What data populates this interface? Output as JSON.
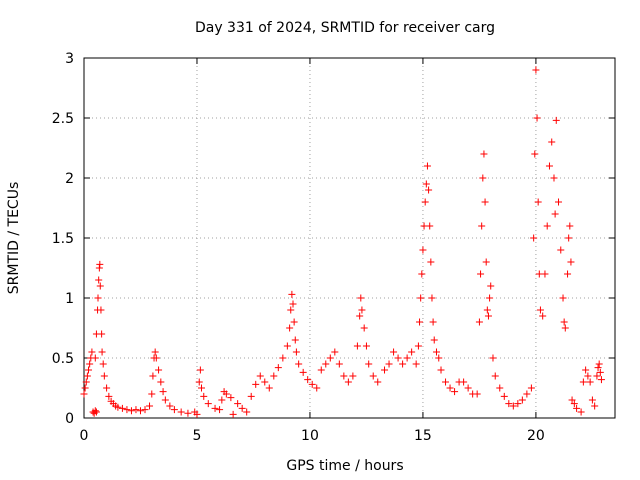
{
  "chart_data": {
    "type": "scatter",
    "title": "Day 331 of 2024, SRMTID for receiver carg",
    "xlabel": "GPS time / hours",
    "ylabel": "SRMTID / TECUs",
    "xlim": [
      0,
      23.5
    ],
    "ylim": [
      0,
      3
    ],
    "xticks": [
      0,
      5,
      10,
      15,
      20
    ],
    "xtick_labels": [
      "0",
      "5",
      "10",
      "15",
      "20"
    ],
    "yticks": [
      0,
      0.5,
      1,
      1.5,
      2,
      2.5,
      3
    ],
    "ytick_labels": [
      "0",
      "0.5",
      "1",
      "1.5",
      "2",
      "2.5",
      "3"
    ],
    "grid": true,
    "marker": "+",
    "series": [
      {
        "name": "SRMTID",
        "color": "#ff0000",
        "points": [
          [
            0.0,
            0.2
          ],
          [
            0.05,
            0.25
          ],
          [
            0.1,
            0.3
          ],
          [
            0.15,
            0.35
          ],
          [
            0.2,
            0.4
          ],
          [
            0.25,
            0.45
          ],
          [
            0.3,
            0.5
          ],
          [
            0.35,
            0.55
          ],
          [
            0.4,
            0.05
          ],
          [
            0.45,
            0.04
          ],
          [
            0.5,
            0.06
          ],
          [
            0.55,
            0.05
          ],
          [
            0.5,
            0.5
          ],
          [
            0.55,
            0.7
          ],
          [
            0.6,
            0.9
          ],
          [
            0.62,
            1.0
          ],
          [
            0.65,
            1.15
          ],
          [
            0.68,
            1.25
          ],
          [
            0.7,
            1.28
          ],
          [
            0.72,
            1.1
          ],
          [
            0.75,
            0.9
          ],
          [
            0.78,
            0.7
          ],
          [
            0.8,
            0.55
          ],
          [
            0.85,
            0.45
          ],
          [
            0.9,
            0.35
          ],
          [
            1.0,
            0.25
          ],
          [
            1.1,
            0.18
          ],
          [
            1.2,
            0.14
          ],
          [
            1.3,
            0.12
          ],
          [
            1.4,
            0.1
          ],
          [
            1.5,
            0.09
          ],
          [
            1.7,
            0.08
          ],
          [
            1.9,
            0.07
          ],
          [
            2.1,
            0.06
          ],
          [
            2.3,
            0.07
          ],
          [
            2.5,
            0.06
          ],
          [
            2.7,
            0.07
          ],
          [
            2.9,
            0.1
          ],
          [
            3.0,
            0.2
          ],
          [
            3.05,
            0.35
          ],
          [
            3.1,
            0.5
          ],
          [
            3.15,
            0.55
          ],
          [
            3.2,
            0.5
          ],
          [
            3.3,
            0.4
          ],
          [
            3.4,
            0.3
          ],
          [
            3.5,
            0.22
          ],
          [
            3.6,
            0.15
          ],
          [
            3.8,
            0.1
          ],
          [
            4.0,
            0.07
          ],
          [
            4.3,
            0.05
          ],
          [
            4.6,
            0.04
          ],
          [
            4.9,
            0.05
          ],
          [
            5.0,
            0.03
          ],
          [
            5.1,
            0.3
          ],
          [
            5.15,
            0.4
          ],
          [
            5.2,
            0.25
          ],
          [
            5.3,
            0.18
          ],
          [
            5.5,
            0.12
          ],
          [
            5.8,
            0.08
          ],
          [
            6.0,
            0.07
          ],
          [
            6.1,
            0.15
          ],
          [
            6.2,
            0.22
          ],
          [
            6.3,
            0.2
          ],
          [
            6.5,
            0.17
          ],
          [
            6.6,
            0.03
          ],
          [
            6.8,
            0.12
          ],
          [
            7.0,
            0.08
          ],
          [
            7.2,
            0.05
          ],
          [
            7.4,
            0.18
          ],
          [
            7.6,
            0.28
          ],
          [
            7.8,
            0.35
          ],
          [
            8.0,
            0.3
          ],
          [
            8.2,
            0.25
          ],
          [
            8.4,
            0.35
          ],
          [
            8.6,
            0.42
          ],
          [
            8.8,
            0.5
          ],
          [
            9.0,
            0.6
          ],
          [
            9.1,
            0.75
          ],
          [
            9.15,
            0.9
          ],
          [
            9.2,
            1.03
          ],
          [
            9.25,
            0.95
          ],
          [
            9.3,
            0.8
          ],
          [
            9.35,
            0.65
          ],
          [
            9.4,
            0.55
          ],
          [
            9.5,
            0.45
          ],
          [
            9.7,
            0.38
          ],
          [
            9.9,
            0.32
          ],
          [
            10.1,
            0.28
          ],
          [
            10.3,
            0.25
          ],
          [
            10.5,
            0.4
          ],
          [
            10.7,
            0.45
          ],
          [
            10.9,
            0.5
          ],
          [
            11.1,
            0.55
          ],
          [
            11.3,
            0.45
          ],
          [
            11.5,
            0.35
          ],
          [
            11.7,
            0.3
          ],
          [
            11.9,
            0.35
          ],
          [
            12.1,
            0.6
          ],
          [
            12.2,
            0.85
          ],
          [
            12.25,
            1.0
          ],
          [
            12.3,
            0.9
          ],
          [
            12.4,
            0.75
          ],
          [
            12.5,
            0.6
          ],
          [
            12.6,
            0.45
          ],
          [
            12.8,
            0.35
          ],
          [
            13.0,
            0.3
          ],
          [
            13.3,
            0.4
          ],
          [
            13.5,
            0.45
          ],
          [
            13.7,
            0.55
          ],
          [
            13.9,
            0.5
          ],
          [
            14.1,
            0.45
          ],
          [
            14.3,
            0.5
          ],
          [
            14.5,
            0.55
          ],
          [
            14.7,
            0.45
          ],
          [
            14.8,
            0.6
          ],
          [
            14.85,
            0.8
          ],
          [
            14.9,
            1.0
          ],
          [
            14.95,
            1.2
          ],
          [
            15.0,
            1.4
          ],
          [
            15.05,
            1.6
          ],
          [
            15.1,
            1.8
          ],
          [
            15.15,
            1.95
          ],
          [
            15.2,
            2.1
          ],
          [
            15.25,
            1.9
          ],
          [
            15.3,
            1.6
          ],
          [
            15.35,
            1.3
          ],
          [
            15.4,
            1.0
          ],
          [
            15.45,
            0.8
          ],
          [
            15.5,
            0.65
          ],
          [
            15.6,
            0.55
          ],
          [
            15.7,
            0.5
          ],
          [
            15.8,
            0.4
          ],
          [
            16.0,
            0.3
          ],
          [
            16.2,
            0.25
          ],
          [
            16.4,
            0.22
          ],
          [
            16.6,
            0.3
          ],
          [
            16.8,
            0.3
          ],
          [
            17.0,
            0.25
          ],
          [
            17.2,
            0.2
          ],
          [
            17.4,
            0.2
          ],
          [
            17.5,
            0.8
          ],
          [
            17.55,
            1.2
          ],
          [
            17.6,
            1.6
          ],
          [
            17.65,
            2.0
          ],
          [
            17.7,
            2.2
          ],
          [
            17.75,
            1.8
          ],
          [
            17.8,
            1.3
          ],
          [
            17.85,
            0.9
          ],
          [
            17.9,
            0.85
          ],
          [
            17.95,
            1.0
          ],
          [
            18.0,
            1.1
          ],
          [
            18.1,
            0.5
          ],
          [
            18.2,
            0.35
          ],
          [
            18.4,
            0.25
          ],
          [
            18.6,
            0.18
          ],
          [
            18.8,
            0.12
          ],
          [
            19.0,
            0.1
          ],
          [
            19.2,
            0.12
          ],
          [
            19.4,
            0.15
          ],
          [
            19.6,
            0.2
          ],
          [
            19.8,
            0.25
          ],
          [
            19.9,
            1.5
          ],
          [
            19.95,
            2.2
          ],
          [
            20.0,
            2.9
          ],
          [
            20.05,
            2.5
          ],
          [
            20.1,
            1.8
          ],
          [
            20.15,
            1.2
          ],
          [
            20.2,
            0.9
          ],
          [
            20.3,
            0.85
          ],
          [
            20.4,
            1.2
          ],
          [
            20.5,
            1.6
          ],
          [
            20.6,
            2.1
          ],
          [
            20.7,
            2.3
          ],
          [
            20.8,
            2.0
          ],
          [
            20.85,
            1.7
          ],
          [
            20.9,
            2.48
          ],
          [
            21.0,
            1.8
          ],
          [
            21.1,
            1.4
          ],
          [
            21.2,
            1.0
          ],
          [
            21.25,
            0.8
          ],
          [
            21.3,
            0.75
          ],
          [
            21.4,
            1.2
          ],
          [
            21.45,
            1.5
          ],
          [
            21.5,
            1.6
          ],
          [
            21.55,
            1.3
          ],
          [
            21.6,
            0.15
          ],
          [
            21.7,
            0.12
          ],
          [
            21.8,
            0.08
          ],
          [
            22.0,
            0.05
          ],
          [
            22.1,
            0.3
          ],
          [
            22.2,
            0.4
          ],
          [
            22.3,
            0.35
          ],
          [
            22.4,
            0.3
          ],
          [
            22.5,
            0.15
          ],
          [
            22.6,
            0.1
          ],
          [
            22.7,
            0.35
          ],
          [
            22.75,
            0.42
          ],
          [
            22.8,
            0.45
          ],
          [
            22.85,
            0.38
          ],
          [
            22.9,
            0.32
          ]
        ]
      }
    ]
  }
}
